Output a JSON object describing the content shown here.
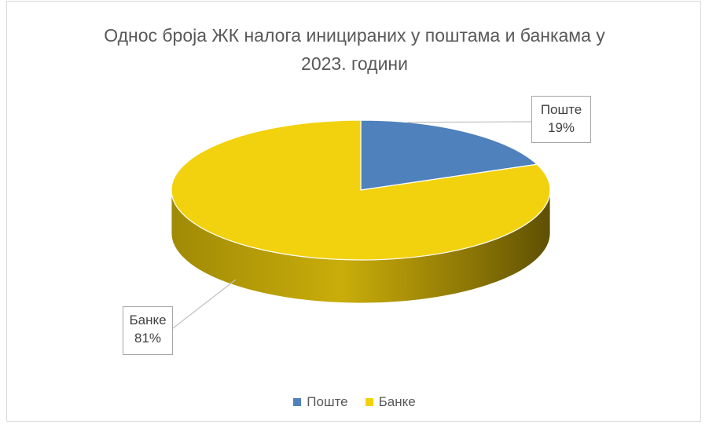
{
  "chart_data": {
    "type": "pie",
    "title_lines": [
      "Однос броја ЖК налога иницираних  у поштама и банкама у",
      "2023. години"
    ],
    "categories": [
      "Поште",
      "Банке"
    ],
    "values": [
      19,
      81
    ],
    "data_labels": [
      {
        "name": "Поште",
        "value": "19%"
      },
      {
        "name": "Банке",
        "value": "81%"
      }
    ],
    "colors": {
      "Поште": "#4f81bd",
      "Банке": "#f2d20f"
    },
    "legend_position": "bottom",
    "style": "3d-pie"
  }
}
